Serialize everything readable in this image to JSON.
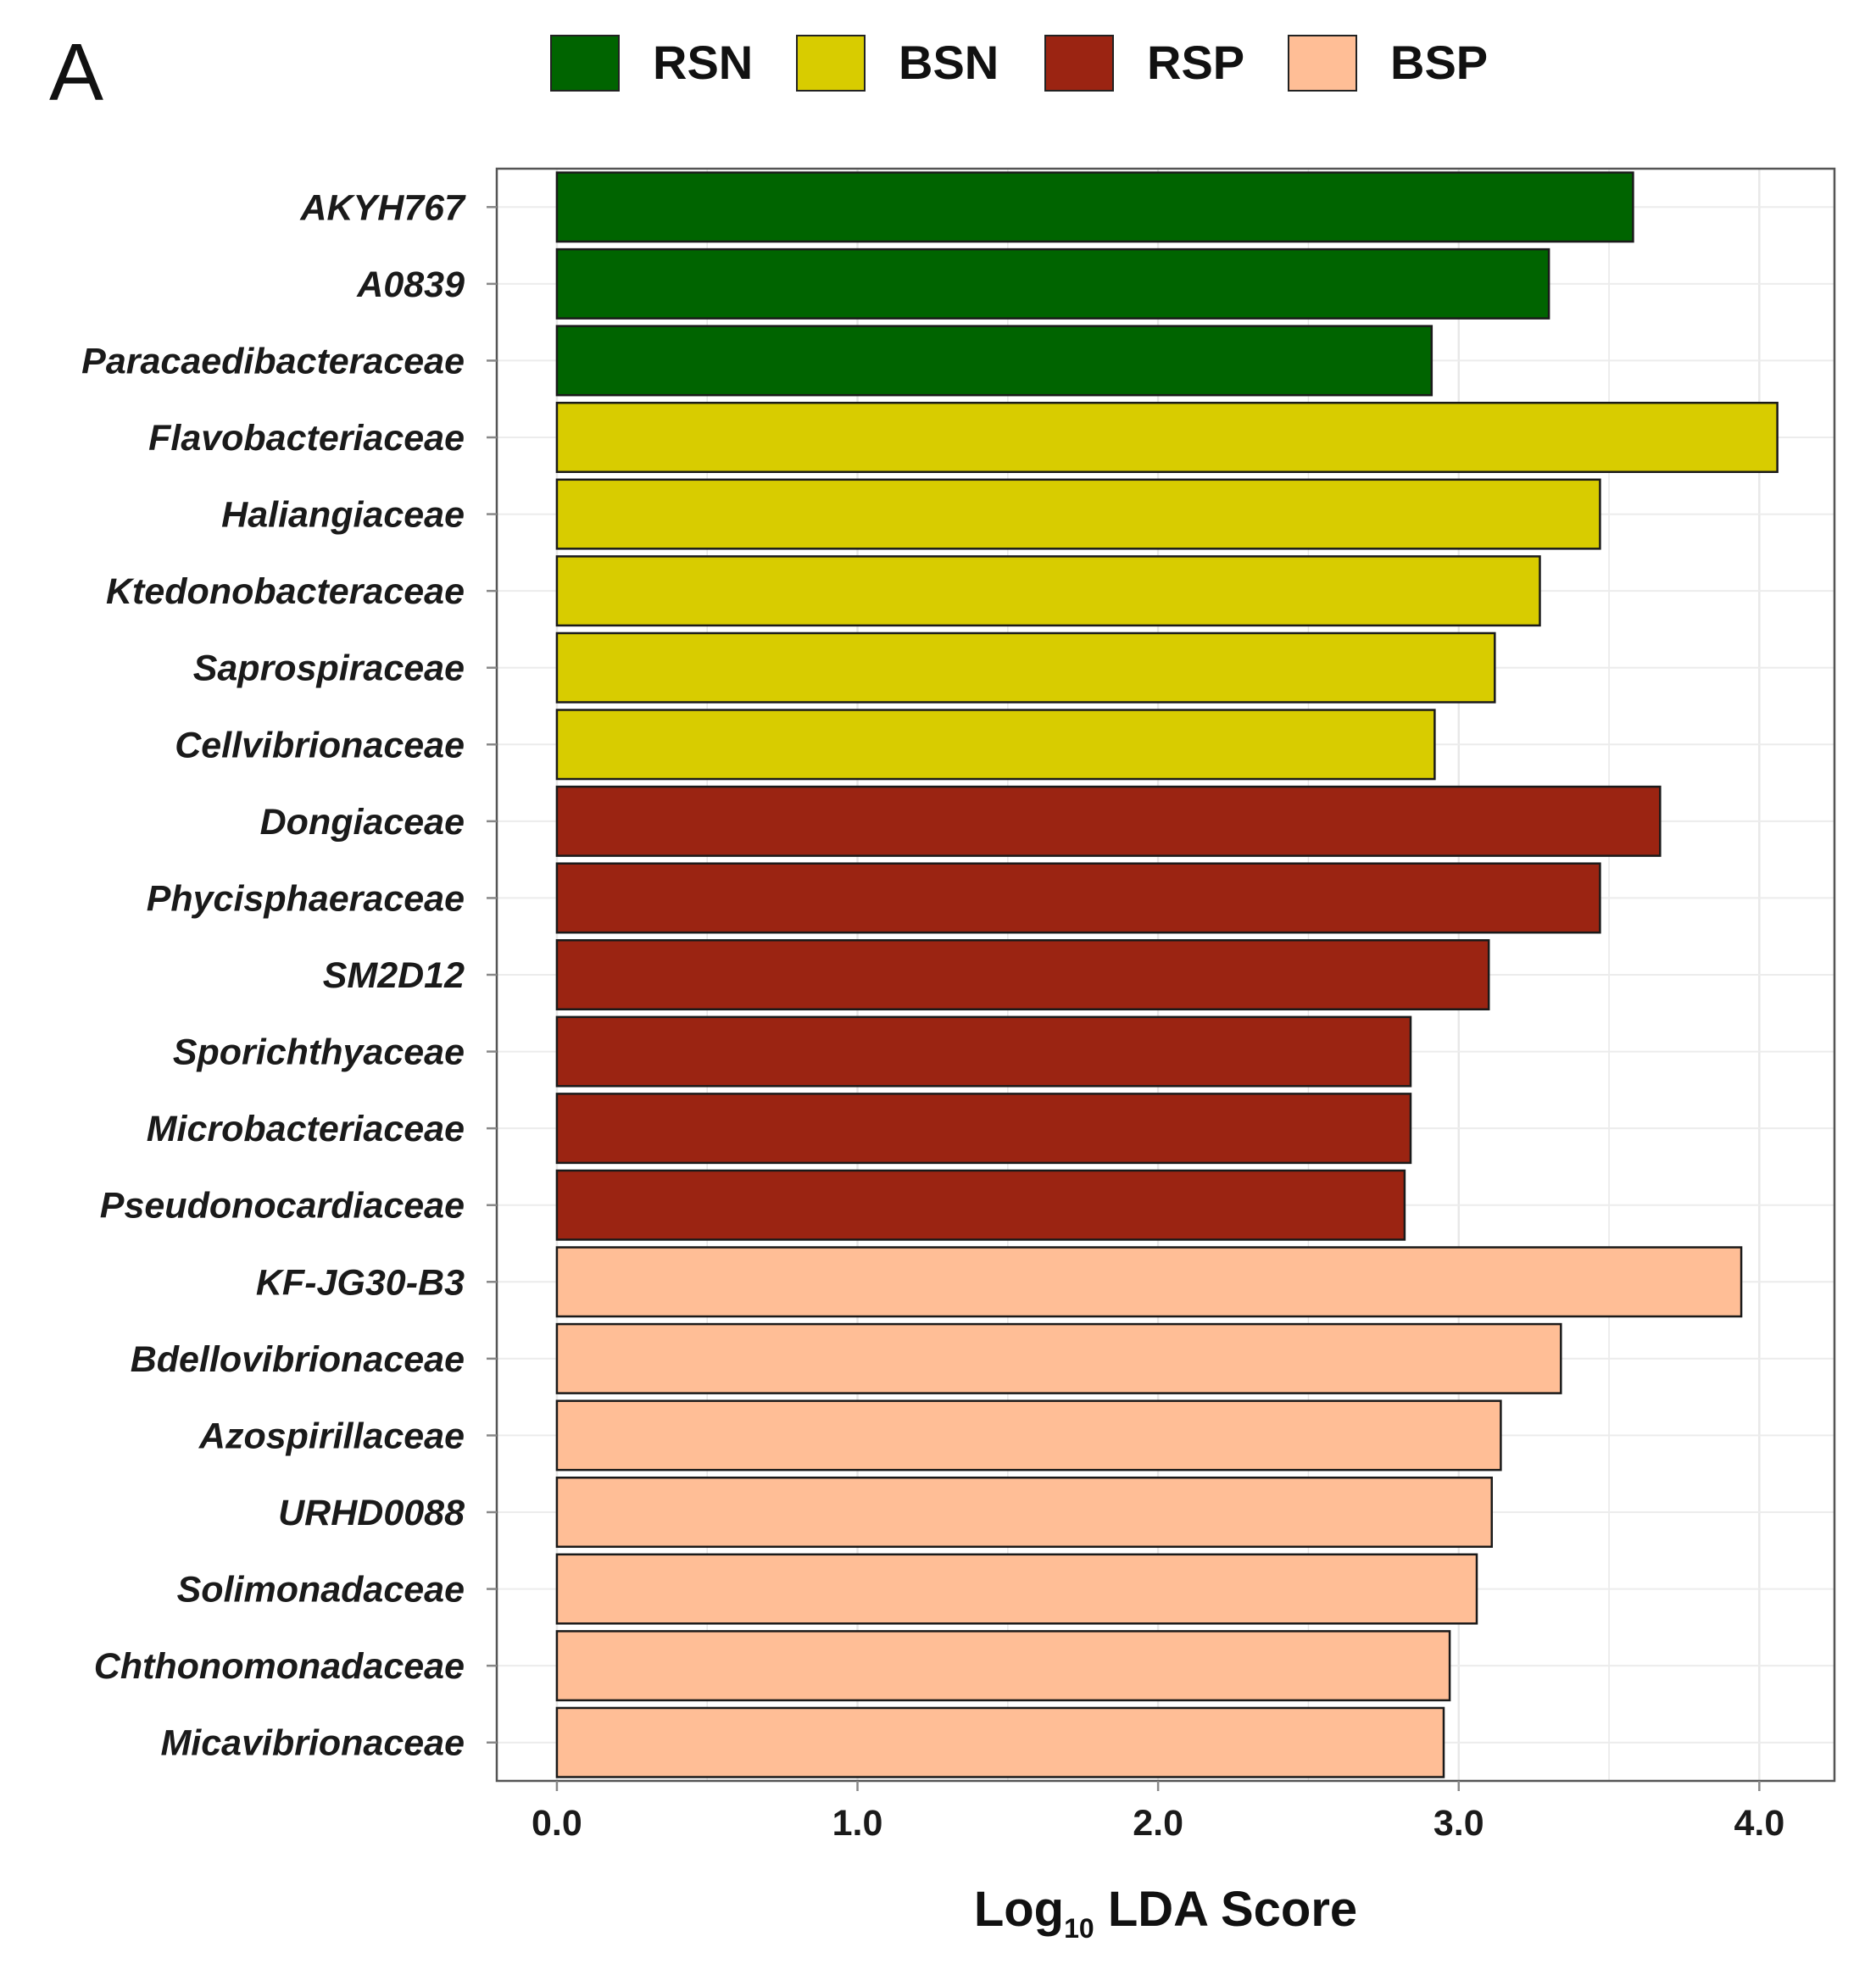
{
  "panel_label": "A",
  "chart_data": {
    "type": "bar",
    "orientation": "horizontal",
    "title": "",
    "xlabel": "Log10 LDA Score",
    "xlabel_parts": {
      "base": "Log",
      "sub": "10",
      "rest": " LDA Score"
    },
    "ylabel": "",
    "xlim": [
      -0.2,
      4.25
    ],
    "xticks": [
      0,
      1,
      2,
      3,
      4
    ],
    "xtick_labels": [
      "0.0",
      "1.0",
      "2.0",
      "3.0",
      "4.0"
    ],
    "grid": true,
    "legend_position": "top",
    "legend": [
      {
        "name": "RSN",
        "color": "#006400"
      },
      {
        "name": "BSN",
        "color": "#D8CC00"
      },
      {
        "name": "RSP",
        "color": "#9B2412"
      },
      {
        "name": "BSP",
        "color": "#FFBE96"
      }
    ],
    "categories": [
      "AKYH767",
      "A0839",
      "Paracaedibacteraceae",
      "Flavobacteriaceae",
      "Haliangiaceae",
      "Ktedonobacteraceae",
      "Saprospiraceae",
      "Cellvibrionaceae",
      "Dongiaceae",
      "Phycisphaeraceae",
      "SM2D12",
      "Sporichthyaceae",
      "Microbacteriaceae",
      "Pseudonocardiaceae",
      "KF-JG30-B3",
      "Bdellovibrionaceae",
      "Azospirillaceae",
      "URHD0088",
      "Solimonadaceae",
      "Chthonomonadaceae",
      "Micavibrionaceae"
    ],
    "values": [
      3.58,
      3.3,
      2.91,
      4.06,
      3.47,
      3.27,
      3.12,
      2.92,
      3.67,
      3.47,
      3.1,
      2.84,
      2.84,
      2.82,
      3.94,
      3.34,
      3.14,
      3.11,
      3.06,
      2.97,
      2.95
    ],
    "groups": [
      "RSN",
      "RSN",
      "RSN",
      "BSN",
      "BSN",
      "BSN",
      "BSN",
      "BSN",
      "RSP",
      "RSP",
      "RSP",
      "RSP",
      "RSP",
      "RSP",
      "BSP",
      "BSP",
      "BSP",
      "BSP",
      "BSP",
      "BSP",
      "BSP"
    ]
  }
}
